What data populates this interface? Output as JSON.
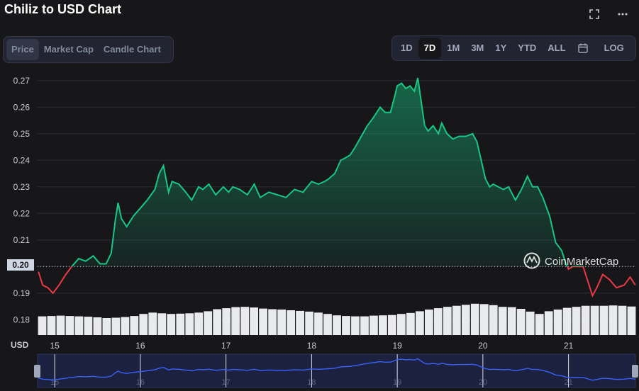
{
  "header": {
    "title": "Chiliz to USD Chart",
    "fullscreen_icon": "fullscreen-icon",
    "more_icon": "more-horizontal-icon"
  },
  "chart_tabs": [
    {
      "label": "Price",
      "active": true
    },
    {
      "label": "Market Cap",
      "active": false
    },
    {
      "label": "Candle Chart",
      "active": false
    }
  ],
  "timeframes": [
    {
      "label": "1D",
      "active": false
    },
    {
      "label": "7D",
      "active": true
    },
    {
      "label": "1M",
      "active": false
    },
    {
      "label": "3M",
      "active": false
    },
    {
      "label": "1Y",
      "active": false
    },
    {
      "label": "YTD",
      "active": false
    },
    {
      "label": "ALL",
      "active": false
    }
  ],
  "calendar_icon": "calendar-icon",
  "log_label": "LOG",
  "watermark": "CoinMarketCap",
  "current_price_label": "0.20",
  "x_axis_unit": "USD",
  "colors": {
    "up": "#16c784",
    "down": "#ea3943",
    "background": "#17171a",
    "navigator_line": "#3861fb"
  },
  "chart_data": {
    "type": "line",
    "title": "Chiliz to USD Chart",
    "xlabel": "",
    "ylabel": "",
    "y_ticks": [
      "0.27",
      "0.26",
      "0.25",
      "0.24",
      "0.23",
      "0.22",
      "0.21",
      "0.20",
      "0.19",
      "0.18"
    ],
    "x_ticks": [
      "15",
      "16",
      "17",
      "18",
      "19",
      "20",
      "21"
    ],
    "ylim": [
      0.175,
      0.275
    ],
    "xlim": [
      14.8,
      21.79
    ],
    "baseline_value": 0.2,
    "grid": true,
    "legend": "none",
    "series": [
      {
        "x": [
          14.81,
          14.86,
          14.92,
          14.98,
          15.05,
          15.13,
          15.2,
          15.28,
          15.36,
          15.45,
          15.53,
          15.6,
          15.66,
          15.71,
          15.74,
          15.78,
          15.84,
          15.92,
          16.0,
          16.08,
          16.17,
          16.22,
          16.27,
          16.33,
          16.37,
          16.45,
          16.53,
          16.6,
          16.68,
          16.73,
          16.8,
          16.88,
          16.97,
          17.03,
          17.08,
          17.16,
          17.25,
          17.33,
          17.4,
          17.5,
          17.6,
          17.7,
          17.8,
          17.9,
          18.0,
          18.08,
          18.15,
          18.2,
          18.27,
          18.34,
          18.4,
          18.45,
          18.51,
          18.58,
          18.65,
          18.72,
          18.8,
          18.86,
          18.92,
          18.97,
          19.0,
          19.05,
          19.1,
          19.15,
          19.2,
          19.24,
          19.28,
          19.32,
          19.36,
          19.42,
          19.48,
          19.52,
          19.58,
          19.65,
          19.72,
          19.8,
          19.88,
          19.93,
          19.98,
          20.03,
          20.08,
          20.12,
          20.18,
          20.24,
          20.3,
          20.38,
          20.45,
          20.52,
          20.58,
          20.64,
          20.7,
          20.78,
          20.85,
          20.92,
          20.97,
          21.0,
          21.05,
          21.12,
          21.17,
          21.23,
          21.28,
          21.33,
          21.4,
          21.48,
          21.56,
          21.65,
          21.72,
          21.78
        ],
        "y": [
          0.198,
          0.193,
          0.192,
          0.19,
          0.193,
          0.197,
          0.2,
          0.203,
          0.202,
          0.204,
          0.201,
          0.201,
          0.205,
          0.218,
          0.224,
          0.218,
          0.215,
          0.219,
          0.222,
          0.225,
          0.229,
          0.235,
          0.238,
          0.228,
          0.232,
          0.231,
          0.228,
          0.225,
          0.23,
          0.229,
          0.231,
          0.227,
          0.23,
          0.228,
          0.23,
          0.229,
          0.227,
          0.231,
          0.226,
          0.228,
          0.227,
          0.226,
          0.229,
          0.228,
          0.232,
          0.231,
          0.232,
          0.233,
          0.235,
          0.24,
          0.241,
          0.242,
          0.245,
          0.249,
          0.253,
          0.256,
          0.26,
          0.258,
          0.258,
          0.264,
          0.268,
          0.269,
          0.267,
          0.268,
          0.266,
          0.271,
          0.262,
          0.253,
          0.251,
          0.253,
          0.25,
          0.254,
          0.25,
          0.248,
          0.249,
          0.249,
          0.25,
          0.247,
          0.24,
          0.233,
          0.23,
          0.231,
          0.23,
          0.229,
          0.23,
          0.225,
          0.229,
          0.234,
          0.23,
          0.23,
          0.226,
          0.219,
          0.209,
          0.206,
          0.201,
          0.199,
          0.2,
          0.2,
          0.2,
          0.194,
          0.189,
          0.192,
          0.197,
          0.195,
          0.192,
          0.193,
          0.196,
          0.193
        ]
      }
    ],
    "volume": [
      0.55,
      0.56,
      0.57,
      0.56,
      0.55,
      0.54,
      0.52,
      0.5,
      0.51,
      0.53,
      0.56,
      0.62,
      0.66,
      0.64,
      0.62,
      0.63,
      0.64,
      0.66,
      0.7,
      0.76,
      0.79,
      0.82,
      0.83,
      0.81,
      0.78,
      0.76,
      0.75,
      0.73,
      0.71,
      0.69,
      0.66,
      0.62,
      0.58,
      0.56,
      0.55,
      0.55,
      0.57,
      0.58,
      0.59,
      0.62,
      0.65,
      0.7,
      0.75,
      0.79,
      0.83,
      0.86,
      0.89,
      0.92,
      0.91,
      0.88,
      0.83,
      0.82,
      0.77,
      0.69,
      0.62,
      0.7,
      0.75,
      0.8,
      0.83,
      0.86,
      0.86,
      0.86,
      0.87,
      0.86,
      0.84
    ],
    "navigator_ticks": [
      "15",
      "16",
      "17",
      "18",
      "19",
      "20",
      "21"
    ]
  }
}
